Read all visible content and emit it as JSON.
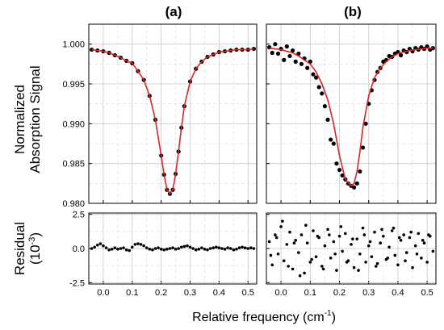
{
  "figure": {
    "panel_labels": [
      "(a)",
      "(b)"
    ],
    "ylabel_top_line1": "Normalized",
    "ylabel_top_line2": "Absorption Signal",
    "ylabel_bottom_line1": "Residual",
    "ylabel_bottom_line2_base": "(10",
    "ylabel_bottom_line2_exp": "-3",
    "ylabel_bottom_line2_end": ")",
    "xlabel_base": "Relative frequency (cm",
    "xlabel_exp": "-1",
    "xlabel_end": ")"
  },
  "chart_data": [
    {
      "type": "line",
      "panel": "(a)",
      "xlim": [
        -0.05,
        0.53
      ],
      "ylim": [
        0.98,
        1.0025
      ],
      "xticks": [
        0.0,
        0.1,
        0.2,
        0.3,
        0.4,
        0.5
      ],
      "xtick_labels": [
        "0.0",
        "0.1",
        "0.2",
        "0.3",
        "0.4",
        "0.5"
      ],
      "yticks": [
        0.98,
        0.985,
        0.99,
        0.995,
        1.0
      ],
      "ytick_labels": [
        "0.980",
        "0.985",
        "0.990",
        "0.995",
        "1.000"
      ],
      "grid": true,
      "series": [
        {
          "style": "markers",
          "color": "#000000",
          "x": [
            -0.04,
            -0.02,
            0.0,
            0.02,
            0.04,
            0.06,
            0.08,
            0.1,
            0.12,
            0.14,
            0.16,
            0.18,
            0.2,
            0.21,
            0.22,
            0.23,
            0.24,
            0.25,
            0.26,
            0.27,
            0.28,
            0.3,
            0.32,
            0.34,
            0.36,
            0.38,
            0.4,
            0.42,
            0.44,
            0.46,
            0.48,
            0.5,
            0.52
          ],
          "y": [
            0.9993,
            0.9992,
            0.9991,
            0.9989,
            0.9986,
            0.9983,
            0.9979,
            0.9976,
            0.9966,
            0.9955,
            0.9935,
            0.9905,
            0.986,
            0.9836,
            0.9817,
            0.9812,
            0.9817,
            0.9837,
            0.9865,
            0.9895,
            0.9922,
            0.9953,
            0.9969,
            0.9978,
            0.9984,
            0.9987,
            0.999,
            0.9991,
            0.9992,
            0.9993,
            0.9993,
            0.9993,
            0.9994
          ]
        },
        {
          "style": "line",
          "color": "#d62728",
          "x": [
            -0.04,
            -0.02,
            0.0,
            0.02,
            0.04,
            0.06,
            0.08,
            0.1,
            0.12,
            0.14,
            0.16,
            0.18,
            0.2,
            0.21,
            0.22,
            0.23,
            0.24,
            0.25,
            0.26,
            0.27,
            0.28,
            0.3,
            0.32,
            0.34,
            0.36,
            0.38,
            0.4,
            0.42,
            0.44,
            0.46,
            0.48,
            0.5,
            0.52
          ],
          "y": [
            0.9993,
            0.9992,
            0.9991,
            0.9989,
            0.9986,
            0.9983,
            0.9979,
            0.9976,
            0.9966,
            0.9955,
            0.9935,
            0.9905,
            0.986,
            0.9836,
            0.9817,
            0.9812,
            0.9817,
            0.9837,
            0.9865,
            0.9895,
            0.9922,
            0.9953,
            0.9969,
            0.9978,
            0.9984,
            0.9987,
            0.999,
            0.9991,
            0.9992,
            0.9993,
            0.9993,
            0.9993,
            0.9994
          ]
        }
      ]
    },
    {
      "type": "line",
      "panel": "(b)",
      "xlim": [
        -0.05,
        0.53
      ],
      "ylim": [
        0.98,
        1.0025
      ],
      "xticks": [
        0.0,
        0.1,
        0.2,
        0.3,
        0.4,
        0.5
      ],
      "xtick_labels": [
        "0.0",
        "0.1",
        "0.2",
        "0.3",
        "0.4",
        "0.5"
      ],
      "yticks": [
        0.98,
        0.985,
        0.99,
        0.995,
        1.0
      ],
      "grid": true,
      "series": [
        {
          "style": "markers",
          "color": "#000000",
          "x": [
            -0.04,
            -0.03,
            -0.02,
            -0.01,
            0.0,
            0.01,
            0.02,
            0.03,
            0.04,
            0.05,
            0.06,
            0.07,
            0.08,
            0.09,
            0.1,
            0.11,
            0.12,
            0.13,
            0.14,
            0.15,
            0.16,
            0.17,
            0.18,
            0.19,
            0.2,
            0.21,
            0.22,
            0.23,
            0.24,
            0.25,
            0.26,
            0.27,
            0.28,
            0.29,
            0.3,
            0.31,
            0.32,
            0.33,
            0.34,
            0.35,
            0.36,
            0.37,
            0.38,
            0.39,
            0.4,
            0.41,
            0.42,
            0.43,
            0.44,
            0.45,
            0.46,
            0.47,
            0.48,
            0.49,
            0.5,
            0.51,
            0.52
          ],
          "y": [
            0.9996,
            0.9989,
            1.0,
            0.9988,
            0.9994,
            0.998,
            0.9997,
            0.9985,
            0.9992,
            0.9978,
            0.9988,
            0.9975,
            0.9982,
            0.997,
            0.9978,
            0.9962,
            0.9958,
            0.9946,
            0.9938,
            0.9922,
            0.9905,
            0.988,
            0.9875,
            0.985,
            0.9842,
            0.9835,
            0.983,
            0.9825,
            0.9822,
            0.982,
            0.9825,
            0.984,
            0.987,
            0.99,
            0.9925,
            0.9942,
            0.9955,
            0.9965,
            0.997,
            0.9978,
            0.998,
            0.9985,
            0.9984,
            0.9988,
            0.999,
            0.9986,
            0.9992,
            0.999,
            0.9994,
            0.9991,
            0.9995,
            0.9993,
            0.9996,
            0.9994,
            0.9997,
            0.9993,
            0.9995
          ]
        },
        {
          "style": "line",
          "color": "#d62728",
          "x": [
            -0.04,
            -0.02,
            0.0,
            0.02,
            0.04,
            0.06,
            0.08,
            0.1,
            0.12,
            0.14,
            0.16,
            0.18,
            0.2,
            0.22,
            0.24,
            0.25,
            0.26,
            0.27,
            0.28,
            0.3,
            0.32,
            0.34,
            0.36,
            0.38,
            0.4,
            0.42,
            0.44,
            0.46,
            0.48,
            0.5,
            0.52
          ],
          "y": [
            0.9995,
            0.9994,
            0.9993,
            0.9991,
            0.9989,
            0.9985,
            0.998,
            0.9975,
            0.9965,
            0.995,
            0.993,
            0.99,
            0.986,
            0.983,
            0.9822,
            0.9825,
            0.984,
            0.9865,
            0.9895,
            0.9935,
            0.9958,
            0.997,
            0.9978,
            0.9984,
            0.9988,
            0.999,
            0.9992,
            0.9993,
            0.9994,
            0.9995,
            0.9995
          ]
        }
      ]
    },
    {
      "type": "scatter",
      "panel": "(a) residual",
      "xlim": [
        -0.05,
        0.53
      ],
      "ylim": [
        -2.6,
        2.6
      ],
      "xticks": [
        0.0,
        0.1,
        0.2,
        0.3,
        0.4,
        0.5
      ],
      "xtick_labels": [
        "0.0",
        "0.1",
        "0.2",
        "0.3",
        "0.4",
        "0.5"
      ],
      "yticks": [
        -2.5,
        0.0,
        2.5
      ],
      "ytick_labels": [
        "-2.5",
        "0.0",
        "2.5"
      ],
      "grid": true,
      "series": [
        {
          "style": "markers",
          "color": "#000000",
          "x": [
            -0.04,
            -0.03,
            -0.02,
            -0.01,
            0.0,
            0.01,
            0.02,
            0.03,
            0.04,
            0.05,
            0.06,
            0.07,
            0.08,
            0.09,
            0.1,
            0.11,
            0.12,
            0.13,
            0.14,
            0.15,
            0.16,
            0.17,
            0.18,
            0.19,
            0.2,
            0.21,
            0.22,
            0.23,
            0.24,
            0.25,
            0.26,
            0.27,
            0.28,
            0.29,
            0.3,
            0.31,
            0.32,
            0.33,
            0.34,
            0.35,
            0.36,
            0.37,
            0.38,
            0.39,
            0.4,
            0.41,
            0.42,
            0.43,
            0.44,
            0.45,
            0.46,
            0.47,
            0.48,
            0.49,
            0.5,
            0.51,
            0.52
          ],
          "y": [
            0.0,
            0.1,
            0.25,
            0.35,
            0.2,
            0.05,
            -0.1,
            -0.05,
            0.05,
            -0.05,
            0.0,
            0.05,
            -0.1,
            -0.15,
            0.1,
            0.3,
            0.35,
            0.3,
            0.2,
            0.05,
            -0.05,
            -0.1,
            0.0,
            0.05,
            -0.05,
            -0.1,
            -0.05,
            0.0,
            0.05,
            -0.05,
            0.0,
            0.1,
            0.15,
            0.2,
            0.1,
            0.0,
            -0.1,
            -0.05,
            0.05,
            -0.05,
            -0.1,
            0.0,
            0.05,
            0.1,
            0.05,
            0.0,
            -0.05,
            0.05,
            0.0,
            -0.1,
            -0.05,
            0.05,
            0.1,
            0.05,
            0.0,
            0.05,
            0.0
          ]
        }
      ]
    },
    {
      "type": "scatter",
      "panel": "(b) residual",
      "xlim": [
        -0.05,
        0.53
      ],
      "ylim": [
        -2.6,
        2.6
      ],
      "xticks": [
        0.0,
        0.1,
        0.2,
        0.3,
        0.4,
        0.5
      ],
      "xtick_labels": [
        "0.0",
        "0.1",
        "0.2",
        "0.3",
        "0.4",
        "0.5"
      ],
      "yticks": [
        -2.5,
        0.0,
        2.5
      ],
      "grid": true,
      "series": [
        {
          "style": "markers",
          "color": "#000000",
          "x": [
            -0.04,
            -0.03,
            -0.02,
            -0.01,
            0.0,
            0.01,
            0.02,
            0.03,
            0.04,
            0.05,
            0.06,
            0.07,
            0.08,
            0.09,
            0.1,
            0.11,
            0.12,
            0.13,
            0.14,
            0.15,
            0.16,
            0.17,
            0.18,
            0.19,
            0.2,
            0.21,
            0.22,
            0.23,
            0.24,
            0.25,
            0.26,
            0.27,
            0.28,
            0.29,
            0.3,
            0.31,
            0.32,
            0.33,
            0.34,
            0.35,
            0.36,
            0.37,
            0.38,
            0.39,
            0.4,
            0.41,
            0.42,
            0.43,
            0.44,
            0.45,
            0.46,
            0.47,
            0.48,
            0.49,
            0.5,
            0.51,
            0.52
          ],
          "y": [
            0.5,
            -1.2,
            1.0,
            -0.4,
            1.6,
            -0.9,
            0.3,
            1.2,
            -1.5,
            0.6,
            -0.3,
            1.0,
            -1.8,
            0.4,
            -1.0,
            1.3,
            -0.6,
            0.8,
            -1.3,
            0.2,
            1.4,
            -0.7,
            0.5,
            -1.6,
            0.9,
            -0.2,
            1.1,
            -0.9,
            0.3,
            -1.4,
            0.7,
            -0.4,
            1.5,
            -1.0,
            0.2,
            -0.6,
            1.2,
            -1.1,
            0.4,
            0.9,
            -0.8,
            0.1,
            1.3,
            -0.5,
            -1.2,
            0.6,
            1.0,
            -0.3,
            0.8,
            -1.4,
            0.2,
            1.1,
            -0.7,
            0.4,
            -1.0,
            0.9,
            -0.2
          ]
        },
        {
          "style": "markers",
          "color": "#000000",
          "x": [
            -0.035,
            -0.015,
            0.005,
            0.025,
            0.045,
            0.065,
            0.085,
            0.105,
            0.125,
            0.145,
            0.165,
            0.185,
            0.205,
            0.225,
            0.245,
            0.265,
            0.285,
            0.305,
            0.325,
            0.345,
            0.365,
            0.385,
            0.405,
            0.425,
            0.445,
            0.465,
            0.485,
            0.505
          ],
          "y": [
            -0.5,
            0.8,
            2.0,
            -1.3,
            0.4,
            -2.0,
            1.7,
            -0.8,
            0.9,
            -1.5,
            1.0,
            -0.4,
            1.6,
            -1.0,
            0.7,
            -1.6,
            1.0,
            0.5,
            -1.3,
            1.4,
            -0.7,
            1.5,
            0.8,
            -0.9,
            1.2,
            -0.4,
            0.6,
            1.0
          ]
        }
      ]
    }
  ]
}
